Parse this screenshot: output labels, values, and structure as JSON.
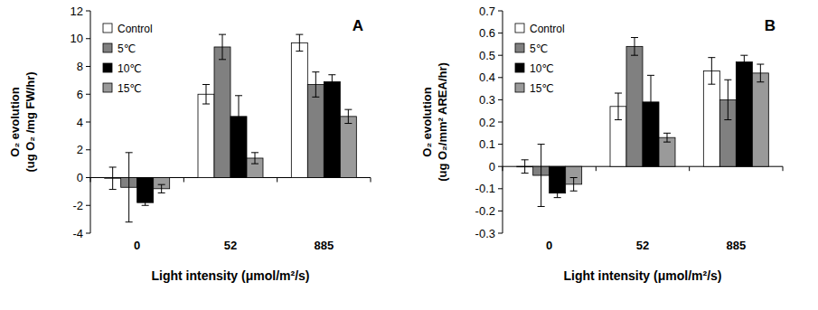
{
  "chart_data": [
    {
      "type": "bar",
      "annotation": "A",
      "ylabel": [
        "O₂ evolution",
        "(ug O₂ /mg FW/hr)"
      ],
      "xlabel": "Light intensity (μmol/m²/s)",
      "categories": [
        "0",
        "52",
        "885"
      ],
      "series": [
        {
          "name": "Control",
          "color": "#ffffff",
          "values": [
            -0.05,
            6.0,
            9.7
          ],
          "errors": [
            0.8,
            0.7,
            0.6
          ]
        },
        {
          "name": "5℃",
          "color": "#808080",
          "values": [
            -0.7,
            9.4,
            6.7
          ],
          "errors": [
            2.5,
            0.9,
            0.9
          ]
        },
        {
          "name": "10℃",
          "color": "#000000",
          "values": [
            -1.8,
            4.4,
            6.9
          ],
          "errors": [
            0.2,
            1.5,
            0.5
          ]
        },
        {
          "name": "15℃",
          "color": "#9a9a9a",
          "values": [
            -0.8,
            1.4,
            4.4
          ],
          "errors": [
            0.3,
            0.4,
            0.5
          ]
        }
      ],
      "ylim": [
        -4,
        12
      ],
      "yticks": [
        -4,
        -2,
        0,
        2,
        4,
        6,
        8,
        10,
        12
      ],
      "legend": "upper-left",
      "grid": false
    },
    {
      "type": "bar",
      "annotation": "B",
      "ylabel": [
        "O₂ evolution",
        "(ug O₂/mm² AREA/hr)"
      ],
      "xlabel": "Light intensity (μmol/m²/s)",
      "categories": [
        "0",
        "52",
        "885"
      ],
      "series": [
        {
          "name": "Control",
          "color": "#ffffff",
          "values": [
            0.0,
            0.27,
            0.43
          ],
          "errors": [
            0.03,
            0.06,
            0.06
          ]
        },
        {
          "name": "5℃",
          "color": "#808080",
          "values": [
            -0.04,
            0.54,
            0.3
          ],
          "errors": [
            0.14,
            0.04,
            0.09
          ]
        },
        {
          "name": "10℃",
          "color": "#000000",
          "values": [
            -0.12,
            0.29,
            0.47
          ],
          "errors": [
            0.02,
            0.12,
            0.03
          ]
        },
        {
          "name": "15℃",
          "color": "#9a9a9a",
          "values": [
            -0.08,
            0.13,
            0.42
          ],
          "errors": [
            0.03,
            0.02,
            0.04
          ]
        }
      ],
      "ylim": [
        -0.3,
        0.7
      ],
      "yticks": [
        -0.3,
        -0.2,
        -0.1,
        0,
        0.1,
        0.2,
        0.3,
        0.4,
        0.5,
        0.6,
        0.7
      ],
      "legend": "upper-left",
      "grid": false
    }
  ]
}
